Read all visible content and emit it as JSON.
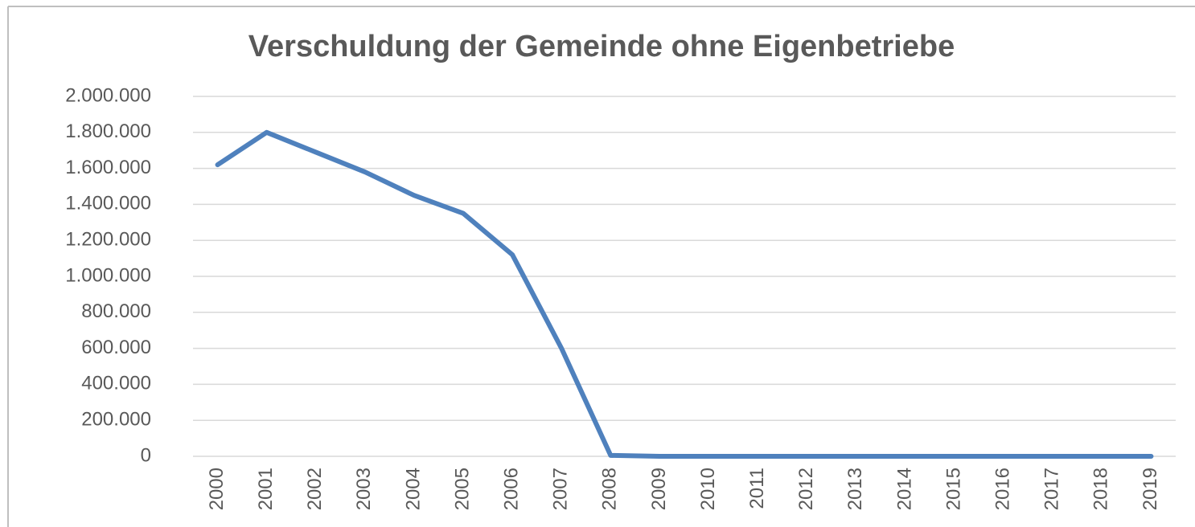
{
  "chart_data": {
    "type": "line",
    "title": "Verschuldung der Gemeinde ohne Eigenbetriebe",
    "categories": [
      "2000",
      "2001",
      "2002",
      "2003",
      "2004",
      "2005",
      "2006",
      "2007",
      "2008",
      "2009",
      "2010",
      "2011",
      "2012",
      "2013",
      "2014",
      "2015",
      "2016",
      "2017",
      "2018",
      "2019"
    ],
    "series": [
      {
        "color": "#4f81bd",
        "values": [
          1620000,
          1800000,
          1690000,
          1580000,
          1450000,
          1350000,
          1120000,
          600000,
          5000,
          0,
          0,
          0,
          0,
          0,
          0,
          0,
          0,
          0,
          0,
          0
        ]
      }
    ],
    "ylim": [
      0,
      2000000
    ],
    "yticks": [
      0,
      {
        "value": 200000,
        "label": "200.000"
      },
      {
        "value": 400000,
        "label": "400.000"
      },
      {
        "value": 600000,
        "label": "600.000"
      },
      {
        "value": 800000,
        "label": "800.000"
      },
      {
        "value": 1000000,
        "label": "1.000.000"
      },
      {
        "value": 1200000,
        "label": "1.200.000"
      },
      {
        "value": 1400000,
        "label": "1.400.000"
      },
      {
        "value": 1600000,
        "label": "1.600.000"
      },
      {
        "value": 1800000,
        "label": "1.800.000"
      },
      {
        "value": 2000000,
        "label": "2.000.000"
      }
    ],
    "grid": true
  }
}
